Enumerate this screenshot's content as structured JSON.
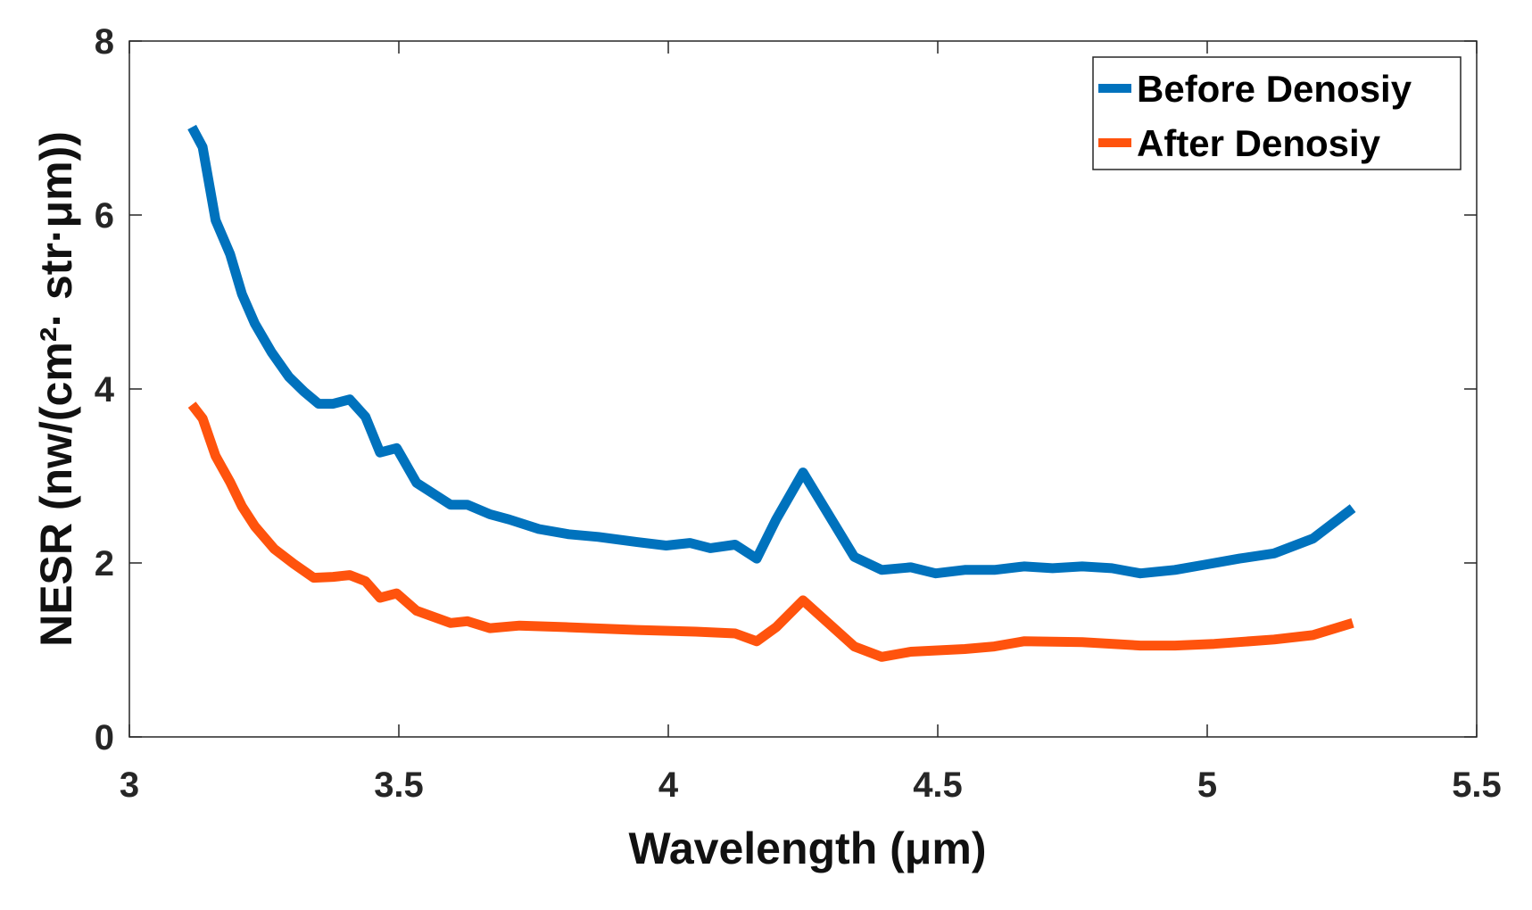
{
  "chart_data": {
    "type": "line",
    "title": "",
    "xlabel": "Wavelength (μm)",
    "ylabel": "NESR (nw/(cm²· str·μm))",
    "xlim": [
      3,
      5.5
    ],
    "ylim": [
      0,
      8
    ],
    "xticks": [
      "3",
      "3.5",
      "4",
      "4.5",
      "5",
      "5.5"
    ],
    "yticks": [
      "0",
      "2",
      "4",
      "6",
      "8"
    ],
    "grid": false,
    "legend": "top-right",
    "series": [
      {
        "name": "Before Denosiy",
        "color": "#0072BD",
        "x": [
          3.116,
          3.136,
          3.16,
          3.187,
          3.209,
          3.233,
          3.264,
          3.296,
          3.324,
          3.351,
          3.378,
          3.409,
          3.438,
          3.465,
          3.496,
          3.533,
          3.596,
          3.627,
          3.669,
          3.705,
          3.76,
          3.815,
          3.87,
          3.942,
          3.996,
          4.04,
          4.078,
          4.124,
          4.164,
          4.2,
          4.25,
          4.345,
          4.396,
          4.45,
          4.496,
          4.55,
          4.605,
          4.66,
          4.713,
          4.768,
          4.823,
          4.876,
          4.94,
          4.995,
          5.06,
          5.124,
          5.196,
          5.27
        ],
        "y": [
          7.01,
          6.78,
          5.94,
          5.55,
          5.09,
          4.75,
          4.42,
          4.14,
          3.97,
          3.83,
          3.83,
          3.88,
          3.68,
          3.27,
          3.32,
          2.92,
          2.67,
          2.67,
          2.56,
          2.5,
          2.39,
          2.33,
          2.3,
          2.24,
          2.2,
          2.23,
          2.17,
          2.21,
          2.05,
          2.5,
          3.04,
          2.07,
          1.92,
          1.95,
          1.88,
          1.92,
          1.92,
          1.96,
          1.94,
          1.96,
          1.94,
          1.88,
          1.92,
          1.98,
          2.05,
          2.11,
          2.28,
          2.63
        ]
      },
      {
        "name": "After Denosiy",
        "color": "#FF530D",
        "x": [
          3.116,
          3.136,
          3.16,
          3.187,
          3.209,
          3.233,
          3.269,
          3.305,
          3.342,
          3.378,
          3.409,
          3.438,
          3.465,
          3.496,
          3.533,
          3.596,
          3.627,
          3.669,
          3.724,
          3.815,
          3.942,
          4.051,
          4.124,
          4.164,
          4.2,
          4.25,
          4.345,
          4.396,
          4.45,
          4.55,
          4.605,
          4.66,
          4.768,
          4.876,
          4.94,
          5.013,
          5.124,
          5.196,
          5.27
        ],
        "y": [
          3.82,
          3.66,
          3.23,
          2.93,
          2.65,
          2.42,
          2.16,
          1.99,
          1.83,
          1.84,
          1.86,
          1.79,
          1.6,
          1.65,
          1.45,
          1.31,
          1.33,
          1.25,
          1.28,
          1.26,
          1.23,
          1.21,
          1.19,
          1.1,
          1.26,
          1.57,
          1.04,
          0.92,
          0.98,
          1.01,
          1.04,
          1.1,
          1.09,
          1.05,
          1.05,
          1.07,
          1.12,
          1.17,
          1.31
        ]
      }
    ]
  }
}
